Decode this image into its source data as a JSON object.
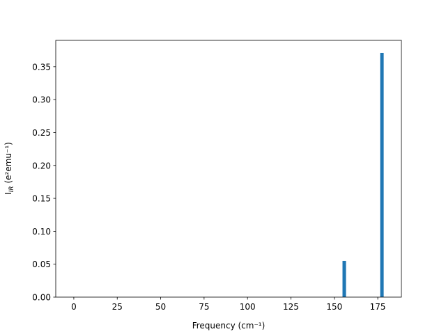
{
  "chart_data": {
    "type": "bar",
    "x": [
      155.7,
      177.4
    ],
    "values": [
      0.055,
      0.371
    ],
    "color": "#1f77b4",
    "xlabel": "Frequency (cm⁻¹)",
    "ylabel": {
      "main": "I",
      "sub": "IR",
      "rest": "(e²emu⁻¹)"
    },
    "xlim": [
      -10.4,
      188.6
    ],
    "xticks": [
      0,
      25,
      50,
      75,
      100,
      125,
      150,
      175
    ],
    "ylim": [
      0,
      0.39
    ],
    "yticks": [
      {
        "value": 0,
        "label": "0.00"
      },
      0.05,
      {
        "value": 0.1,
        "label": "0.10"
      },
      0.15,
      {
        "value": 0.2,
        "label": "0.20"
      },
      0.25,
      {
        "value": 0.3,
        "label": "0.30"
      },
      0.35
    ],
    "grid": false
  }
}
